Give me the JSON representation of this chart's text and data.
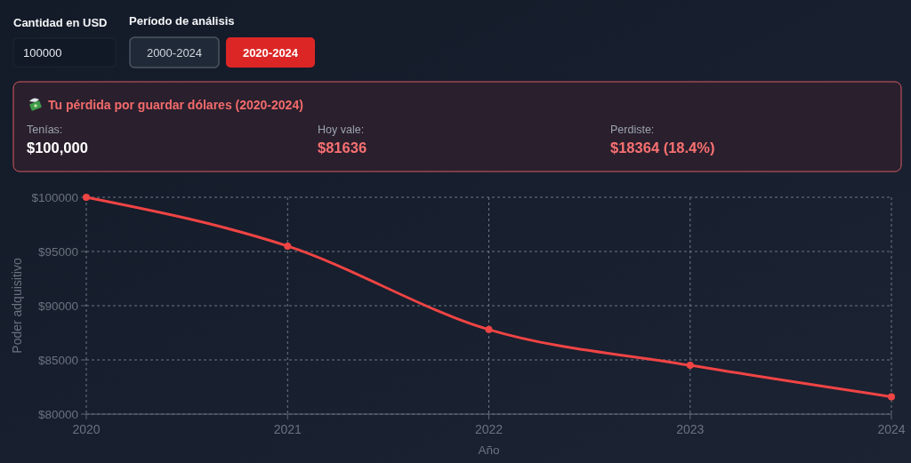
{
  "chart_data": [
    {
      "type": "other",
      "annotations": [
        "Cantidad en USD",
        "100000",
        "Período de análisis",
        "2000-2024",
        "2020-2024"
      ]
    },
    {
      "type": "other",
      "title": "Tu pérdida por guardar dólares (2020-2024)",
      "annotations": [
        "Tenías:",
        "$100,000",
        "Hoy vale:",
        "$81636",
        "Perdiste:",
        "$18364 (18.4%)"
      ]
    },
    {
      "type": "line",
      "xlabel": "Año",
      "ylabel": "Poder adquisitivo",
      "categories": [
        "2020",
        "2021",
        "2022",
        "2023",
        "2024"
      ],
      "series": [
        {
          "color": "#ef4444",
          "values": [
            100000,
            95500,
            87800,
            84500,
            81600
          ]
        }
      ],
      "ylim": [
        80000,
        100000
      ],
      "yticks": [
        {
          "value": 80000,
          "label": "$80000"
        },
        {
          "value": 85000,
          "label": "$85000"
        },
        {
          "value": 90000,
          "label": "$90000"
        },
        {
          "value": 95000,
          "label": "$95000"
        },
        {
          "value": 100000,
          "label": "$100000"
        }
      ],
      "grid": true,
      "marker": "circle",
      "line_style": "solid"
    }
  ]
}
